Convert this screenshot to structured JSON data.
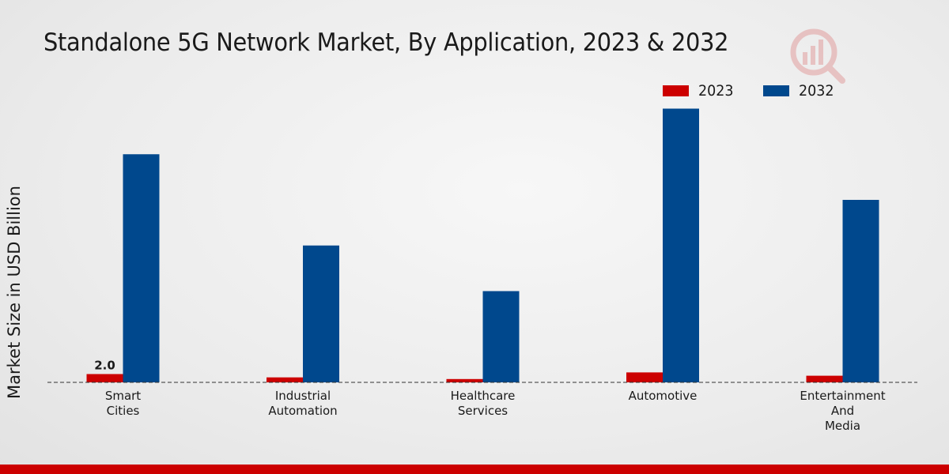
{
  "colors": {
    "series_2023": "#cc0000",
    "series_2032": "#00488d",
    "bottom_bar": "#cc0000",
    "logo": "#cc0000"
  },
  "logo": {
    "icon": "bar-chart-magnifier-icon"
  },
  "chart_data": {
    "type": "bar",
    "title": "Standalone 5G Network Market, By Application, 2023 & 2032",
    "xlabel": "",
    "ylabel": "Market Size in USD Billion",
    "categories": [
      "Smart\nCities",
      "Industrial\nAutomation",
      "Healthcare\nServices",
      "Automotive",
      "Entertainment\nAnd\nMedia"
    ],
    "series": [
      {
        "name": "2023",
        "values": [
          2.0,
          1.2,
          0.8,
          2.4,
          1.6
        ]
      },
      {
        "name": "2032",
        "values": [
          55.0,
          33.0,
          22.0,
          66.0,
          44.0
        ]
      }
    ],
    "data_labels": [
      {
        "series": 0,
        "index": 0,
        "text": "2.0"
      }
    ],
    "ylim": [
      0,
      80
    ],
    "grid": false,
    "legend_position": "top-right"
  }
}
